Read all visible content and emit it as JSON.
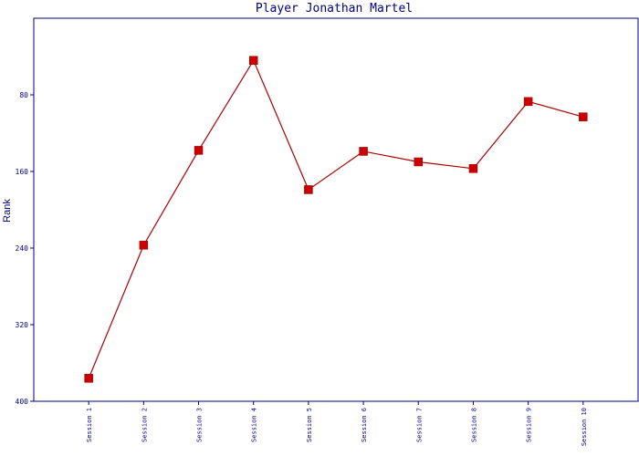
{
  "colors": {
    "axis": "#000080",
    "series": "#aa0000",
    "marker": "#cc0000",
    "background": "#ffffff"
  },
  "chart_data": {
    "type": "line",
    "title": "Player Jonathan Martel",
    "xlabel": "",
    "ylabel": "Rank",
    "y_inverted": true,
    "ylim": [
      400,
      0
    ],
    "yticks": [
      80,
      160,
      240,
      320,
      400
    ],
    "categories": [
      "Session 1",
      "Session 2",
      "Session 3",
      "Session 4",
      "Session 5",
      "Session 6",
      "Session 7",
      "Session 8",
      "Session 9",
      "Session 10"
    ],
    "series": [
      {
        "values": [
          376,
          237,
          138,
          44,
          179,
          139,
          150,
          157,
          87,
          103
        ]
      }
    ],
    "grid": false,
    "legend": "none"
  }
}
